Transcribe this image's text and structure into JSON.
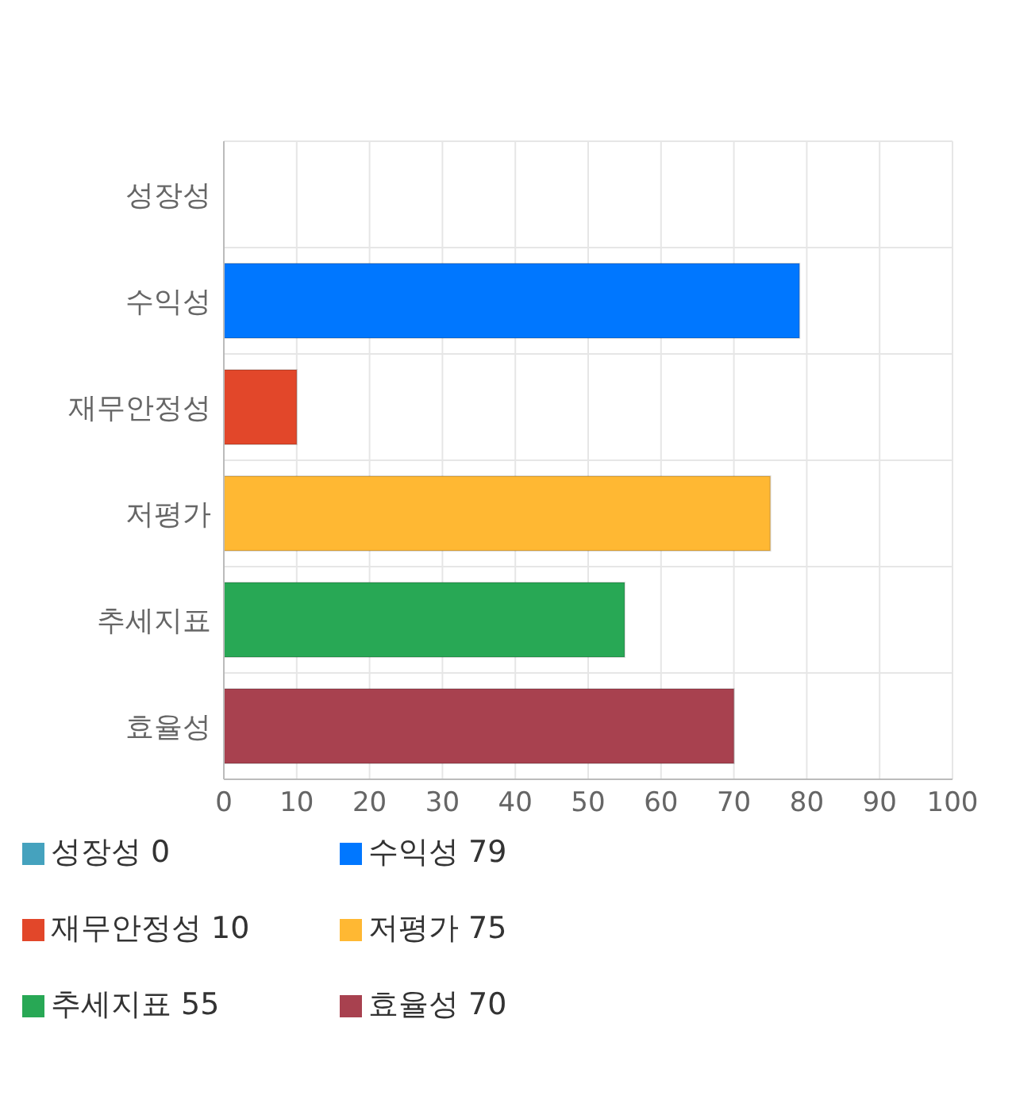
{
  "chart_data": {
    "type": "bar",
    "orientation": "horizontal",
    "stacked": true,
    "categories": [
      "성장성",
      "수익성",
      "재무안정성",
      "저평가",
      "추세지표",
      "효율성"
    ],
    "series": [
      {
        "name": "성장성 0",
        "color": "#45a2be",
        "values": [
          0,
          null,
          null,
          null,
          null,
          null
        ]
      },
      {
        "name": "수익성 79",
        "color": "#0077ff",
        "values": [
          null,
          79,
          null,
          null,
          null,
          null
        ]
      },
      {
        "name": "재무안정성 10",
        "color": "#e2472a",
        "values": [
          null,
          null,
          10,
          null,
          null,
          null
        ]
      },
      {
        "name": "저평가 75",
        "color": "#ffb833",
        "values": [
          null,
          null,
          null,
          75,
          null,
          null
        ]
      },
      {
        "name": "추세지표 55",
        "color": "#28a855",
        "values": [
          null,
          null,
          null,
          null,
          55,
          null
        ]
      },
      {
        "name": "효율성 70",
        "color": "#a8414f",
        "values": [
          null,
          null,
          null,
          null,
          null,
          70
        ]
      }
    ],
    "xlim": [
      0,
      100
    ],
    "xticks": [
      0,
      10,
      20,
      30,
      40,
      50,
      60,
      70,
      80,
      90,
      100
    ],
    "grid": true,
    "legend": "bottom"
  }
}
